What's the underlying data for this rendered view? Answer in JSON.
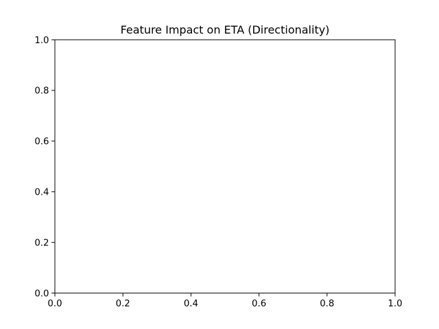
{
  "chart_data": {
    "type": "bar",
    "title": "Feature Impact on ETA (Directionality)",
    "xlabel": "",
    "ylabel": "",
    "xlim": [
      0.0,
      1.0
    ],
    "ylim": [
      0.0,
      1.0
    ],
    "x_ticks": [
      "0.0",
      "0.2",
      "0.4",
      "0.6",
      "0.8",
      "1.0"
    ],
    "y_ticks": [
      "0.0",
      "0.2",
      "0.4",
      "0.6",
      "0.8",
      "1.0"
    ],
    "categories": [],
    "values": [],
    "grid": false,
    "legend": "none"
  }
}
